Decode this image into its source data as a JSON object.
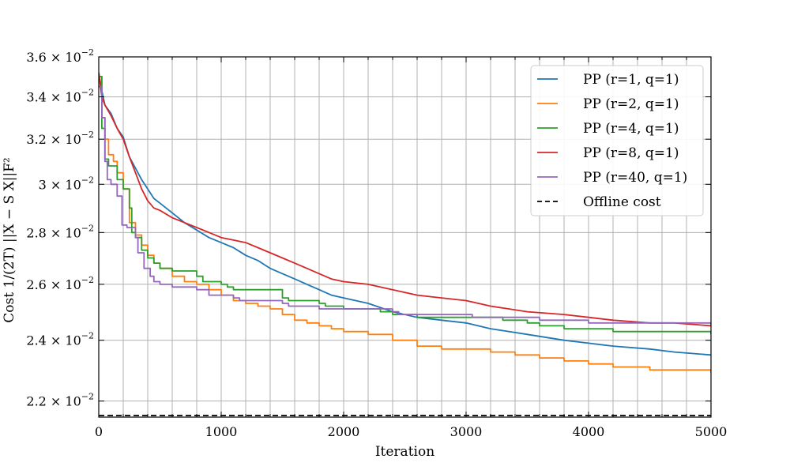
{
  "chart_data": {
    "type": "line",
    "title": "",
    "xlabel": "Iteration",
    "ylabel": "Cost 1/(2T) ||X − S X||F²",
    "xlim": [
      0,
      5000
    ],
    "ylim": [
      0.0215,
      0.036
    ],
    "yscale": "log",
    "grid": true,
    "legend_position": "top-right",
    "x_ticks": [
      0,
      1000,
      2000,
      3000,
      4000,
      5000
    ],
    "y_ticks": [
      {
        "value": 0.022,
        "mantissa": "2.2",
        "exp": "−2"
      },
      {
        "value": 0.024,
        "mantissa": "2.4",
        "exp": "−2"
      },
      {
        "value": 0.026,
        "mantissa": "2.6",
        "exp": "−2"
      },
      {
        "value": 0.028,
        "mantissa": "2.8",
        "exp": "−2"
      },
      {
        "value": 0.03,
        "mantissa": "3",
        "exp": "−2"
      },
      {
        "value": 0.032,
        "mantissa": "3.2",
        "exp": "−2"
      },
      {
        "value": 0.034,
        "mantissa": "3.4",
        "exp": "−2"
      },
      {
        "value": 0.036,
        "mantissa": "3.6",
        "exp": "−2"
      }
    ],
    "series": [
      {
        "name": "PP (r=1, q=1)",
        "color": "#1f77b4",
        "dash": false,
        "step": false,
        "x": [
          0,
          25,
          50,
          100,
          150,
          200,
          250,
          300,
          350,
          400,
          450,
          500,
          600,
          700,
          800,
          900,
          1000,
          1100,
          1200,
          1300,
          1400,
          1500,
          1600,
          1700,
          1800,
          1900,
          2000,
          2200,
          2400,
          2600,
          2800,
          3000,
          3200,
          3500,
          3800,
          4000,
          4200,
          4500,
          4700,
          5000
        ],
        "y": [
          0.0352,
          0.0343,
          0.0336,
          0.0332,
          0.0325,
          0.0321,
          0.0312,
          0.0307,
          0.0302,
          0.0298,
          0.0294,
          0.0292,
          0.0288,
          0.0284,
          0.0281,
          0.0278,
          0.0276,
          0.0274,
          0.0271,
          0.0269,
          0.0266,
          0.0264,
          0.0262,
          0.026,
          0.0258,
          0.0256,
          0.0255,
          0.0253,
          0.025,
          0.0248,
          0.0247,
          0.0246,
          0.0244,
          0.0242,
          0.024,
          0.0239,
          0.0238,
          0.0237,
          0.0236,
          0.0235
        ]
      },
      {
        "name": "PP (r=2, q=1)",
        "color": "#ff7f0e",
        "dash": false,
        "step": true,
        "x": [
          0,
          25,
          50,
          80,
          120,
          150,
          200,
          250,
          300,
          350,
          400,
          450,
          500,
          600,
          700,
          800,
          900,
          1000,
          1100,
          1200,
          1300,
          1400,
          1500,
          1600,
          1700,
          1800,
          1900,
          2000,
          2200,
          2400,
          2600,
          2800,
          3000,
          3200,
          3400,
          3600,
          3800,
          4000,
          4200,
          4500,
          5000
        ],
        "y": [
          0.035,
          0.033,
          0.032,
          0.0313,
          0.031,
          0.0305,
          0.0298,
          0.0284,
          0.0279,
          0.0275,
          0.0271,
          0.0268,
          0.0266,
          0.0263,
          0.0261,
          0.026,
          0.0258,
          0.0256,
          0.0254,
          0.0253,
          0.0252,
          0.0251,
          0.0249,
          0.0247,
          0.0246,
          0.0245,
          0.0244,
          0.0243,
          0.0242,
          0.024,
          0.0238,
          0.0237,
          0.0237,
          0.0236,
          0.0235,
          0.0234,
          0.0233,
          0.0232,
          0.0231,
          0.023,
          0.0229
        ]
      },
      {
        "name": "PP (r=4, q=1)",
        "color": "#2ca02c",
        "dash": false,
        "step": true,
        "x": [
          0,
          25,
          50,
          80,
          150,
          200,
          250,
          270,
          300,
          350,
          400,
          450,
          500,
          600,
          800,
          850,
          1000,
          1050,
          1100,
          1500,
          1550,
          1800,
          1850,
          2000,
          2300,
          2400,
          2600,
          3000,
          3300,
          3500,
          3600,
          3700,
          3800,
          4000,
          4200,
          4500,
          5000
        ],
        "y": [
          0.035,
          0.0325,
          0.0311,
          0.0308,
          0.0302,
          0.0298,
          0.029,
          0.028,
          0.0278,
          0.0273,
          0.027,
          0.0268,
          0.0266,
          0.0265,
          0.0263,
          0.0261,
          0.026,
          0.0259,
          0.0258,
          0.0255,
          0.0254,
          0.0253,
          0.0252,
          0.0251,
          0.025,
          0.0249,
          0.0248,
          0.0248,
          0.0247,
          0.0246,
          0.0245,
          0.0245,
          0.0244,
          0.0244,
          0.0243,
          0.0243,
          0.0242
        ]
      },
      {
        "name": "PP (r=8, q=1)",
        "color": "#d62728",
        "dash": false,
        "step": false,
        "x": [
          0,
          25,
          50,
          100,
          150,
          200,
          250,
          300,
          350,
          400,
          450,
          500,
          600,
          700,
          800,
          900,
          1000,
          1100,
          1200,
          1300,
          1400,
          1500,
          1600,
          1700,
          1800,
          1900,
          2000,
          2200,
          2400,
          2600,
          2800,
          3000,
          3200,
          3500,
          3800,
          4000,
          4200,
          4500,
          4700,
          5000
        ],
        "y": [
          0.0352,
          0.034,
          0.0336,
          0.0331,
          0.0325,
          0.032,
          0.0312,
          0.0305,
          0.0298,
          0.0293,
          0.029,
          0.0289,
          0.0286,
          0.0284,
          0.0282,
          0.028,
          0.0278,
          0.0277,
          0.0276,
          0.0274,
          0.0272,
          0.027,
          0.0268,
          0.0266,
          0.0264,
          0.0262,
          0.0261,
          0.026,
          0.0258,
          0.0256,
          0.0255,
          0.0254,
          0.0252,
          0.025,
          0.0249,
          0.0248,
          0.0247,
          0.0246,
          0.0246,
          0.0245
        ]
      },
      {
        "name": "PP (r=40, q=1)",
        "color": "#9467bd",
        "dash": false,
        "step": true,
        "x": [
          0,
          25,
          50,
          70,
          100,
          150,
          190,
          230,
          300,
          320,
          370,
          420,
          450,
          500,
          600,
          800,
          900,
          1100,
          1150,
          1500,
          1550,
          1800,
          2400,
          2450,
          3000,
          3050,
          3500,
          3600,
          3700,
          4000,
          4500,
          5000
        ],
        "y": [
          0.0345,
          0.033,
          0.031,
          0.0302,
          0.03,
          0.0295,
          0.0283,
          0.0282,
          0.0278,
          0.0272,
          0.0266,
          0.0263,
          0.0261,
          0.026,
          0.0259,
          0.0258,
          0.0256,
          0.0255,
          0.0254,
          0.0253,
          0.0252,
          0.0251,
          0.025,
          0.0249,
          0.0249,
          0.0248,
          0.0248,
          0.0247,
          0.0247,
          0.0246,
          0.0246,
          0.0245
        ]
      },
      {
        "name": "Offline cost",
        "color": "#000000",
        "dash": true,
        "step": false,
        "x": [
          0,
          5000
        ],
        "y": [
          0.02155,
          0.02155
        ]
      }
    ]
  }
}
